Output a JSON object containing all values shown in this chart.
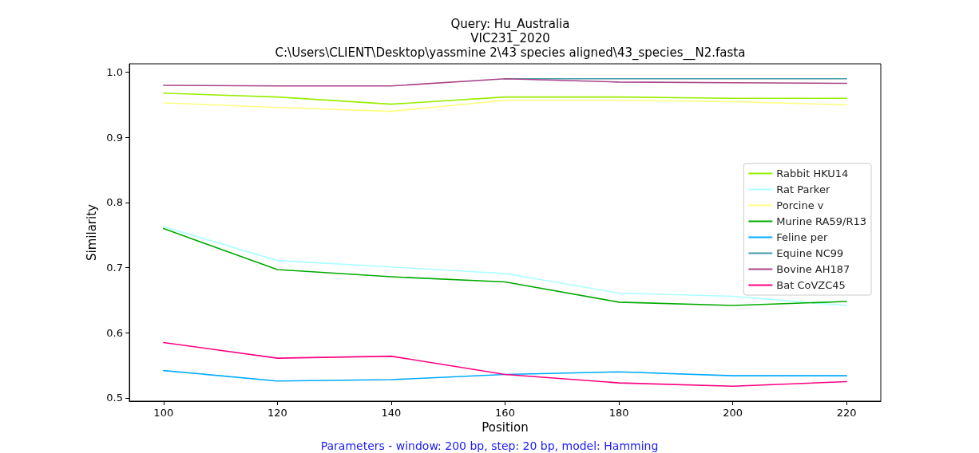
{
  "chart_data": {
    "type": "line",
    "title": "Query: Hu_Australia\nVIC231_2020\nC:\\Users\\CLIENT\\Desktop\\yassmine 2\\43 species aligned\\43_species__N2.fasta",
    "xlabel": "Position",
    "ylabel": "Similarity",
    "annotations": [
      "Parameters - window: 200 bp, step: 20 bp, model: Hamming"
    ],
    "x": [
      100,
      120,
      140,
      160,
      180,
      200,
      220
    ],
    "xlim": [
      94,
      226
    ],
    "xticks": [
      100,
      120,
      140,
      160,
      180,
      200,
      220
    ],
    "ylim": [
      0.495,
      1.013
    ],
    "yticks": [
      0.5,
      0.6,
      0.7,
      0.8,
      0.9,
      {
        "value": 1,
        "label": "1.0"
      }
    ],
    "grid": false,
    "legend": "right",
    "marker": "none",
    "line_style": "solid",
    "series": [
      {
        "name": "Rabbit HKU14",
        "color": "#99ee00",
        "values": [
          0.968,
          0.962,
          0.951,
          0.962,
          0.962,
          0.96,
          0.96
        ]
      },
      {
        "name": "Rat Parker",
        "color": "#aaffff",
        "values": [
          0.763,
          0.711,
          0.701,
          0.691,
          0.661,
          0.656,
          0.642
        ]
      },
      {
        "name": "Porcine v",
        "color": "#ffff80",
        "values": [
          0.953,
          0.946,
          0.94,
          0.957,
          0.957,
          0.955,
          0.95
        ]
      },
      {
        "name": "Murine RA59/R13",
        "color": "#00aa00",
        "values": [
          0.76,
          0.697,
          0.686,
          0.678,
          0.647,
          0.642,
          0.648
        ]
      },
      {
        "name": "Feline per",
        "color": "#00aaff",
        "values": [
          0.542,
          0.526,
          0.528,
          0.536,
          0.54,
          0.534,
          0.534
        ]
      },
      {
        "name": "Equine NC99",
        "color": "#4499aa",
        "values": [
          null,
          null,
          null,
          0.99,
          0.99,
          0.99,
          0.99
        ]
      },
      {
        "name": "Bovine AH187",
        "color": "#aa4488",
        "values": [
          0.98,
          0.979,
          0.979,
          0.99,
          0.985,
          0.984,
          0.983
        ]
      },
      {
        "name": "Bat CoVZC45",
        "color": "#ff0080",
        "values": [
          0.585,
          0.561,
          0.564,
          0.536,
          0.523,
          0.518,
          0.525
        ]
      }
    ]
  }
}
